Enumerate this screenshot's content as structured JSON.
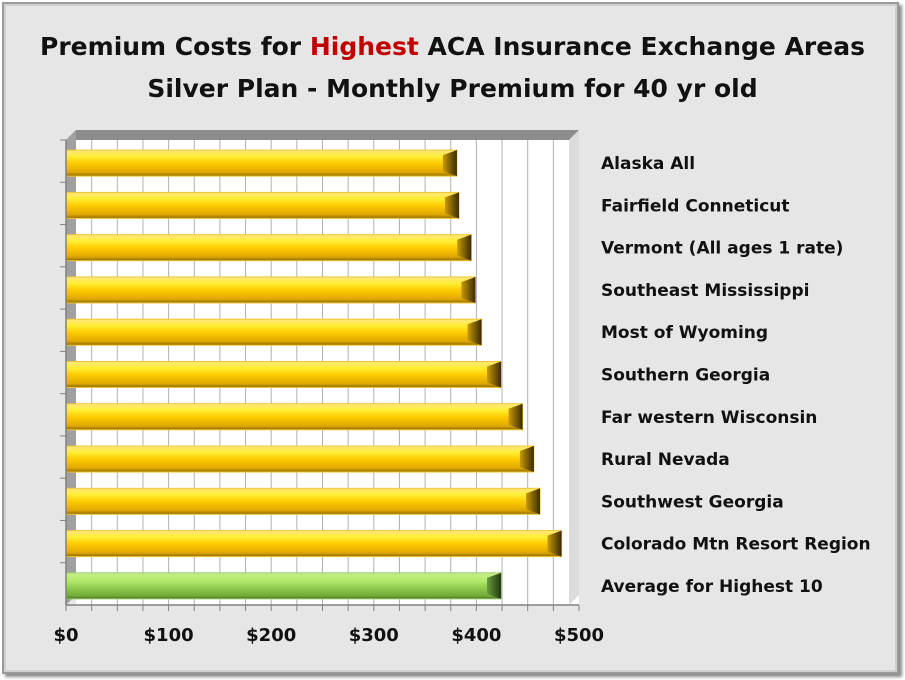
{
  "chart_data": {
    "type": "bar",
    "orientation": "horizontal",
    "title_line1_parts": [
      "Premium Costs for ",
      "Highest",
      " ACA Insurance Exchange Areas"
    ],
    "title_line2": "Silver Plan - Monthly Premium for 40 yr old",
    "categories": [
      "Alaska All",
      "Fairfield Conneticut",
      "Vermont (All ages 1 rate)",
      "Southeast Mississippi",
      "Most of Wyoming",
      "Southern Georgia",
      "Far western Wisconsin",
      "Rural Nevada",
      "Southwest Georgia",
      "Colorado Mtn Resort Region",
      "Average for Highest 10"
    ],
    "values": [
      381,
      383,
      395,
      399,
      405,
      424,
      445,
      456,
      462,
      483,
      424
    ],
    "xlim": [
      0,
      500
    ],
    "x_ticks": [
      "$0",
      "$100",
      "$200",
      "$300",
      "$400",
      "$500"
    ],
    "grid": "vertical minor lines every $50",
    "colors": {
      "bars": "#ffcc00",
      "average_bar": "#92d050",
      "title_highlight": "#c00000"
    },
    "style": "3D beveled bars"
  }
}
